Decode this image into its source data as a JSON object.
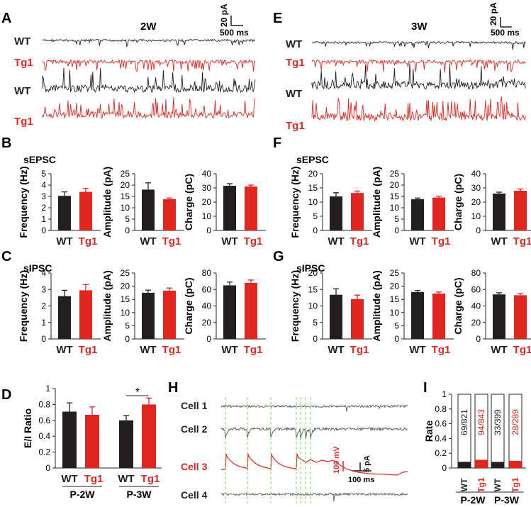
{
  "colors": {
    "wt": "#231f20",
    "tg": "#e0261f",
    "dash": "#7ed957",
    "trace_gray": "#555555"
  },
  "panels": {
    "A": "A",
    "B": "B",
    "C": "C",
    "D": "D",
    "E": "E",
    "F": "F",
    "G": "G",
    "H": "H",
    "I": "I"
  },
  "labels": {
    "wt": "WT",
    "tg": "Tg1",
    "sEPSC": "sEPSC",
    "sIPSC": "sIPSC"
  },
  "traces": {
    "A": {
      "title": "2W",
      "scale_y": "20 pA",
      "scale_x": "500 ms"
    },
    "E": {
      "title": "3W",
      "scale_y": "20 pA",
      "scale_x": "500 ms"
    }
  },
  "axis_titles": {
    "freq": "Frequency (Hz)",
    "amp": "Amplitude (pA)",
    "charge": "Charge (pC)",
    "ei": "E/I Ratio",
    "rate": "Rate"
  },
  "chart_data": [
    {
      "id": "B1",
      "type": "bar",
      "title": "sEPSC",
      "categories": [
        "WT",
        "Tg1"
      ],
      "values": [
        3.05,
        3.4
      ],
      "errors": [
        0.35,
        0.3
      ],
      "ylabel": "Frequency (Hz)",
      "ylim": [
        0,
        5
      ],
      "ticks": [
        0,
        1,
        2,
        3,
        4,
        5
      ]
    },
    {
      "id": "B2",
      "type": "bar",
      "categories": [
        "WT",
        "Tg1"
      ],
      "values": [
        18.0,
        13.8
      ],
      "errors": [
        3.0,
        0.5
      ],
      "ylabel": "Amplitude (pA)",
      "ylim": [
        0,
        25
      ],
      "ticks": [
        0,
        5,
        10,
        15,
        20,
        25
      ]
    },
    {
      "id": "B3",
      "type": "bar",
      "categories": [
        "WT",
        "Tg1"
      ],
      "values": [
        31.5,
        31.0
      ],
      "errors": [
        1.5,
        1.0
      ],
      "ylabel": "Charge (pC)",
      "ylim": [
        0,
        40
      ],
      "ticks": [
        0,
        10,
        20,
        30,
        40
      ]
    },
    {
      "id": "C1",
      "type": "bar",
      "title": "sIPSC",
      "categories": [
        "WT",
        "Tg1"
      ],
      "values": [
        2.6,
        2.95
      ],
      "errors": [
        0.35,
        0.35
      ],
      "ylabel": "Frequency (Hz)",
      "ylim": [
        0,
        4
      ],
      "ticks": [
        0,
        1,
        2,
        3,
        4
      ]
    },
    {
      "id": "C2",
      "type": "bar",
      "categories": [
        "WT",
        "Tg1"
      ],
      "values": [
        17.5,
        18.3
      ],
      "errors": [
        1.0,
        1.0
      ],
      "ylabel": "Amplitude (pA)",
      "ylim": [
        0,
        25
      ],
      "ticks": [
        0,
        5,
        10,
        15,
        20,
        25
      ]
    },
    {
      "id": "C3",
      "type": "bar",
      "categories": [
        "WT",
        "Tg1"
      ],
      "values": [
        65,
        68
      ],
      "errors": [
        4,
        3.5
      ],
      "ylabel": "Charge (pC)",
      "ylim": [
        0,
        80
      ],
      "ticks": [
        0,
        20,
        40,
        60,
        80
      ]
    },
    {
      "id": "F1",
      "type": "bar",
      "title": "sEPSC",
      "categories": [
        "WT",
        "Tg1"
      ],
      "values": [
        12.0,
        13.2
      ],
      "errors": [
        1.3,
        0.7
      ],
      "ylabel": "Frequency (Hz)",
      "ylim": [
        0,
        20
      ],
      "ticks": [
        0,
        5,
        10,
        15,
        20
      ]
    },
    {
      "id": "F2",
      "type": "bar",
      "categories": [
        "WT",
        "Tg1"
      ],
      "values": [
        13.8,
        14.5
      ],
      "errors": [
        0.5,
        0.6
      ],
      "ylabel": "Amplitude (pA)",
      "ylim": [
        0,
        25
      ],
      "ticks": [
        0,
        5,
        10,
        15,
        20,
        25
      ]
    },
    {
      "id": "F3",
      "type": "bar",
      "categories": [
        "WT",
        "Tg1"
      ],
      "values": [
        26,
        28
      ],
      "errors": [
        1.0,
        1.2
      ],
      "ylabel": "Charge (pC)",
      "ylim": [
        0,
        40
      ],
      "ticks": [
        0,
        10,
        20,
        30,
        40
      ]
    },
    {
      "id": "G1",
      "type": "bar",
      "title": "sIPSC",
      "categories": [
        "WT",
        "Tg1"
      ],
      "values": [
        13.4,
        12.1
      ],
      "errors": [
        1.8,
        1.2
      ],
      "ylabel": "Frequency (Hz)",
      "ylim": [
        0,
        20
      ],
      "ticks": [
        0,
        5,
        10,
        15,
        20
      ]
    },
    {
      "id": "G2",
      "type": "bar",
      "categories": [
        "WT",
        "Tg1"
      ],
      "values": [
        17.8,
        17.2
      ],
      "errors": [
        0.6,
        0.6
      ],
      "ylabel": "Amplitude (pA)",
      "ylim": [
        0,
        25
      ],
      "ticks": [
        0,
        5,
        10,
        15,
        20,
        25
      ]
    },
    {
      "id": "G3",
      "type": "bar",
      "categories": [
        "WT",
        "Tg1"
      ],
      "values": [
        54,
        53
      ],
      "errors": [
        2,
        2
      ],
      "ylabel": "Charge (pC)",
      "ylim": [
        0,
        80
      ],
      "ticks": [
        0,
        20,
        40,
        60,
        80
      ]
    },
    {
      "id": "D",
      "type": "bar",
      "categories": [
        "P-2W",
        "P-3W"
      ],
      "series": [
        {
          "name": "WT",
          "values": [
            0.71,
            0.6
          ],
          "errors": [
            0.11,
            0.06
          ]
        },
        {
          "name": "Tg1",
          "values": [
            0.67,
            0.8
          ],
          "errors": [
            0.1,
            0.08
          ]
        }
      ],
      "ylabel": "E/I Ratio",
      "ylim": [
        0,
        1
      ],
      "ticks": [
        "0",
        "0.2",
        "0.4",
        "0.6",
        "0.8",
        "1"
      ],
      "significance": "*"
    },
    {
      "id": "I",
      "type": "bar",
      "stacked": true,
      "categories": [
        "P-2W",
        "P-3W"
      ],
      "series": [
        {
          "name": "WT",
          "fractions": [
            "69/821",
            "33/399"
          ]
        },
        {
          "name": "Tg1",
          "fractions": [
            "94/843",
            "28/289"
          ]
        }
      ],
      "ylabel": "Rate",
      "ylim": [
        0,
        1
      ],
      "ticks": [
        "0",
        "0.2",
        "0.4",
        "0.6",
        "0.8",
        "1"
      ]
    }
  ],
  "panel_H": {
    "cells": [
      "Cell 1",
      "Cell 2",
      "Cell 3",
      "Cell 4"
    ],
    "scale_v": "100 mV",
    "scale_pa": "5 pA",
    "scale_time": "100 ms"
  }
}
